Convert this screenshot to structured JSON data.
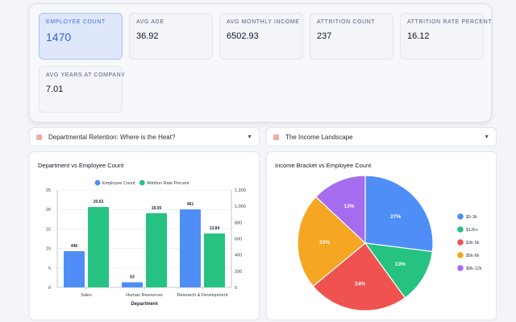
{
  "kpis": [
    {
      "label": "EMPLOYEE COUNT",
      "value": "1470"
    },
    {
      "label": "AVG AGE",
      "value": "36.92"
    },
    {
      "label": "AVG MONTHLY INCOME",
      "value": "6502.93"
    },
    {
      "label": "ATTRITION COUNT",
      "value": "237"
    },
    {
      "label": "ATTRITION RATE PERCENT",
      "value": "16.12"
    },
    {
      "label": "AVG YEARS AT COMPANY",
      "value": "7.01"
    }
  ],
  "sections": [
    {
      "title": "Departmental Retention: Where is the Heat?"
    },
    {
      "title": "The Income Landscape"
    }
  ],
  "icons": {
    "section_icon": "report-icon",
    "expand": "chevron-down-icon"
  },
  "colors": {
    "primary": "#4f8ef7",
    "secondary": "#25c281",
    "accent": "#3b6fe0"
  },
  "chart_data": [
    {
      "type": "bar",
      "title": "Department vs Employee Count",
      "xlabel": "Department",
      "categories": [
        "Sales",
        "Human Resources",
        "Research & Development"
      ],
      "series": [
        {
          "name": "Employee Count",
          "values": [
            446,
            63,
            961
          ],
          "axis": "right",
          "color": "#4f8ef7"
        },
        {
          "name": "Attrition Rate Percent",
          "values": [
            20.63,
            19.05,
            13.84
          ],
          "axis": "left",
          "color": "#25c281"
        }
      ],
      "value_labels": [
        [
          "446",
          "63",
          "961"
        ],
        [
          "20.63",
          "19.05",
          "13.84"
        ]
      ],
      "left_axis": {
        "ylim": [
          0,
          25
        ],
        "ticks": [
          "0",
          "5",
          "10",
          "15",
          "20",
          "25"
        ]
      },
      "right_axis": {
        "ylim": [
          0,
          1200
        ],
        "ticks": [
          "0",
          "200",
          "400",
          "600",
          "800",
          "1,000",
          "1,200"
        ]
      },
      "legend": "top",
      "grid": true
    },
    {
      "type": "pie",
      "title": "Income Bracket vs Employee Count",
      "slices": [
        {
          "label": "$0-3k",
          "value": 27,
          "display": "27%",
          "color": "#4f8ef7"
        },
        {
          "label": "$12k+",
          "value": 13,
          "display": "13%",
          "color": "#25c281"
        },
        {
          "label": "$3k-5k",
          "value": 24,
          "display": "24%",
          "color": "#ef5350"
        },
        {
          "label": "$5k-8k",
          "value": 23,
          "display": "23%",
          "color": "#f5a623"
        },
        {
          "label": "$8k-12k",
          "value": 13,
          "display": "13%",
          "color": "#a66cf0"
        }
      ],
      "legend": "right"
    }
  ]
}
